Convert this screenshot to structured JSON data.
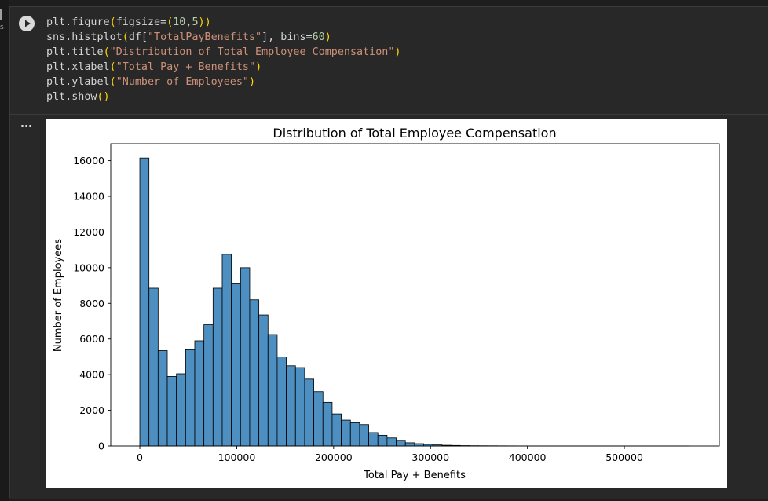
{
  "notebook": {
    "gutter_label": "s",
    "code_lines": [
      [
        {
          "t": "plt.figure",
          "c": ""
        },
        {
          "t": "(",
          "c": "b"
        },
        {
          "t": "figsize=",
          "c": ""
        },
        {
          "t": "(",
          "c": "b"
        },
        {
          "t": "10",
          "c": "n"
        },
        {
          "t": ",",
          "c": ""
        },
        {
          "t": "5",
          "c": "n"
        },
        {
          "t": ")",
          "c": "b"
        },
        {
          "t": ")",
          "c": "b"
        }
      ],
      [
        {
          "t": "sns.histplot",
          "c": ""
        },
        {
          "t": "(",
          "c": "b"
        },
        {
          "t": "df[",
          "c": ""
        },
        {
          "t": "\"TotalPayBenefits\"",
          "c": "s"
        },
        {
          "t": "], bins=",
          "c": ""
        },
        {
          "t": "60",
          "c": "n"
        },
        {
          "t": ")",
          "c": "b"
        }
      ],
      [
        {
          "t": "plt.title",
          "c": ""
        },
        {
          "t": "(",
          "c": "b"
        },
        {
          "t": "\"Distribution of Total Employee Compensation\"",
          "c": "s"
        },
        {
          "t": ")",
          "c": "b"
        }
      ],
      [
        {
          "t": "plt.xlabel",
          "c": ""
        },
        {
          "t": "(",
          "c": "b"
        },
        {
          "t": "\"Total Pay + Benefits\"",
          "c": "s"
        },
        {
          "t": ")",
          "c": "b"
        }
      ],
      [
        {
          "t": "plt.ylabel",
          "c": ""
        },
        {
          "t": "(",
          "c": "b"
        },
        {
          "t": "\"Number of Employees\"",
          "c": "s"
        },
        {
          "t": ")",
          "c": "b"
        }
      ],
      [
        {
          "t": "plt.show",
          "c": ""
        },
        {
          "t": "()",
          "c": "b"
        }
      ]
    ],
    "run_icon": "play-icon",
    "output_menu_icon": "more-horizontal-icon"
  },
  "chart_data": {
    "type": "bar",
    "title": "Distribution of Total Employee Compensation",
    "xlabel": "Total Pay + Benefits",
    "ylabel": "Number of Employees",
    "xlim": [
      -30000,
      598000
    ],
    "ylim": [
      0,
      16950
    ],
    "x_ticks": [
      0,
      100000,
      200000,
      300000,
      400000,
      500000
    ],
    "x_tick_labels": [
      "0",
      "100000",
      "200000",
      "300000",
      "400000",
      "500000"
    ],
    "y_ticks": [
      0,
      2000,
      4000,
      6000,
      8000,
      10000,
      12000,
      14000,
      16000
    ],
    "y_tick_labels": [
      "0",
      "2000",
      "4000",
      "6000",
      "8000",
      "10000",
      "12000",
      "14000",
      "16000"
    ],
    "grid": false,
    "bar_color": "#4c8fc0",
    "edge_color": "#000000",
    "bin_start": 0,
    "bin_width": 9450,
    "values": [
      16150,
      8850,
      5350,
      3900,
      4050,
      5400,
      5900,
      6800,
      8850,
      10750,
      9100,
      10000,
      8200,
      7350,
      6250,
      5000,
      4500,
      4400,
      3750,
      3050,
      2450,
      1800,
      1450,
      1300,
      1200,
      750,
      600,
      450,
      320,
      180,
      130,
      90,
      60,
      40,
      30,
      20,
      15,
      12,
      10,
      8,
      6,
      5,
      4,
      3,
      2,
      2,
      1,
      1,
      1,
      1,
      1,
      1,
      1,
      1,
      1,
      1,
      1,
      1,
      1,
      1
    ]
  }
}
